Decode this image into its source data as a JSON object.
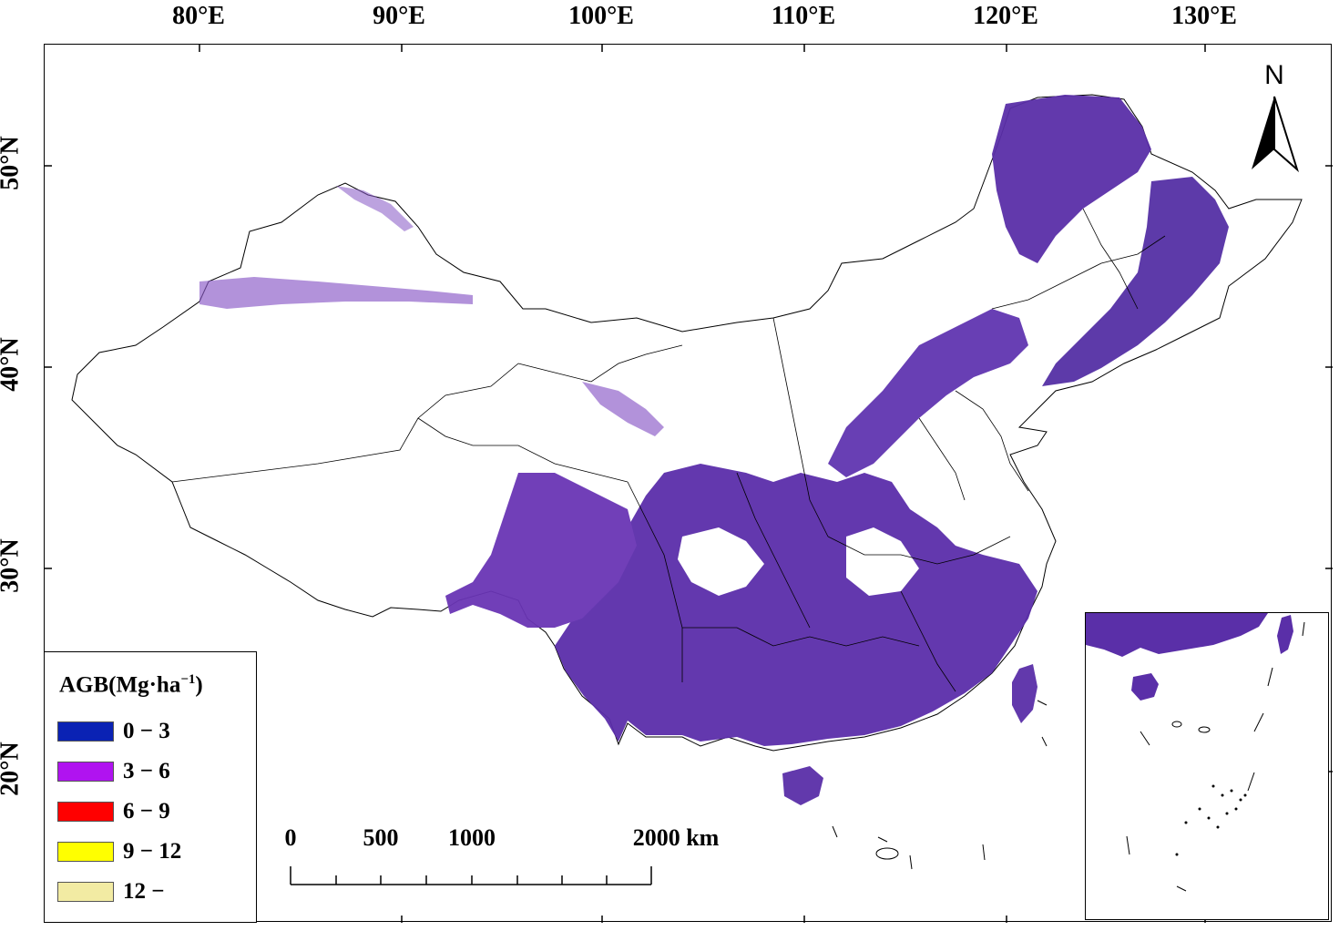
{
  "map": {
    "lon_labels": [
      "80°E",
      "90°E",
      "100°E",
      "110°E",
      "120°E",
      "130°E"
    ],
    "lat_labels": [
      "50°N",
      "40°N",
      "30°N",
      "20°N"
    ],
    "north_label": "N"
  },
  "legend": {
    "title": "AGB(Mg·ha",
    "title_sup": "−1",
    "title_end": ")",
    "items": [
      {
        "label": "0 − 3",
        "color": "#0a22b4"
      },
      {
        "label": "3 − 6",
        "color": "#b013f0"
      },
      {
        "label": "6 − 9",
        "color": "#ff0000"
      },
      {
        "label": "9 − 12",
        "color": "#ffff00"
      },
      {
        "label": "12 −",
        "color": "#f2eba3"
      }
    ]
  },
  "scale_bar": {
    "labels": [
      "0",
      "500",
      "1000",
      "2000 km"
    ]
  },
  "colors": {
    "forest_dark": "#4a2a8c",
    "forest_mid": "#6a35b5",
    "forest_light": "#8a5bc8",
    "boundary": "#000000"
  }
}
